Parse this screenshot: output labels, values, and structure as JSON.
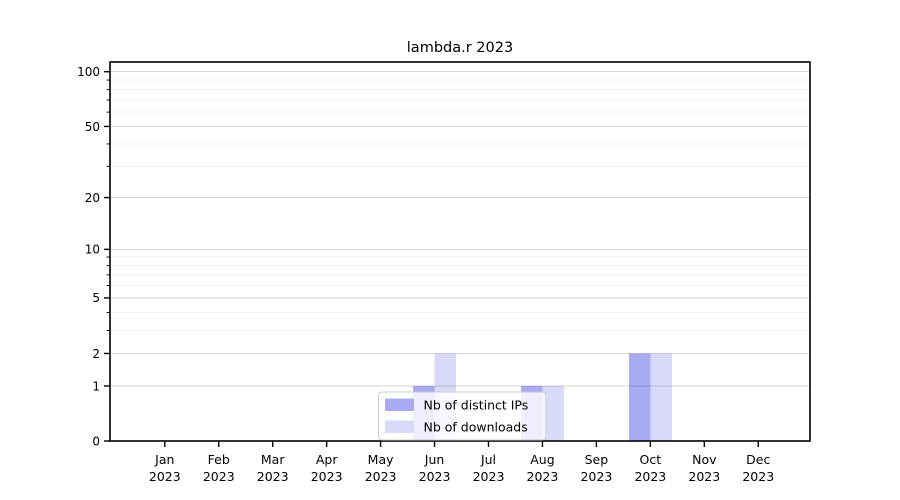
{
  "chart_data": {
    "type": "bar",
    "title": "lambda.r 2023",
    "categories": [
      "Jan 2023",
      "Feb 2023",
      "Mar 2023",
      "Apr 2023",
      "May 2023",
      "Jun 2023",
      "Jul 2023",
      "Aug 2023",
      "Sep 2023",
      "Oct 2023",
      "Nov 2023",
      "Dec 2023"
    ],
    "series": [
      {
        "name": "Nb of distinct IPs",
        "color": "#a9a9f4",
        "values": [
          0,
          0,
          0,
          0,
          0,
          1,
          0,
          1,
          0,
          2,
          0,
          0
        ]
      },
      {
        "name": "Nb of downloads",
        "color": "#d9d9f9",
        "values": [
          0,
          0,
          0,
          0,
          0,
          2,
          0,
          1,
          0,
          2,
          0,
          0
        ]
      }
    ],
    "xlabel": "",
    "ylabel": "",
    "y_axis": {
      "scale": "symlog",
      "major_ticks": [
        0,
        1,
        2,
        5,
        10,
        20,
        50,
        100
      ],
      "minor_ticks": [
        3,
        4,
        6,
        7,
        8,
        9,
        30,
        40,
        60,
        70,
        80,
        90
      ],
      "ylim": [
        0,
        100
      ]
    },
    "legend": {
      "position": "lower center",
      "entries": [
        "Nb of distinct IPs",
        "Nb of downloads"
      ]
    },
    "grid": "on",
    "colors": {
      "background": "#ffffff",
      "axis": "#000000",
      "grid_major": "rgba(0,0,0,0.16)",
      "grid_minor": "rgba(0,0,0,0.055)",
      "legend_border": "#cccccc",
      "legend_background": "rgba(255,255,255,0.8)",
      "bar_distinct_ips": "#a9a9f4",
      "bar_downloads": "#d9d9f9"
    }
  }
}
